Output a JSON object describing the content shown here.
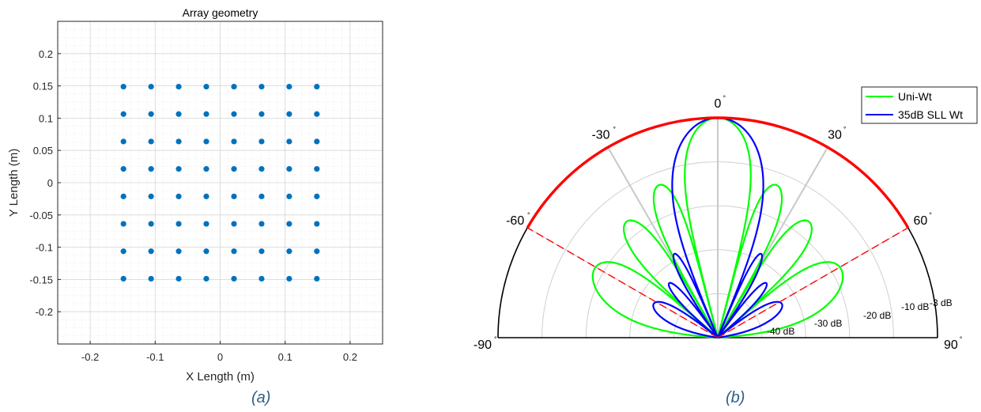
{
  "chart_data": [
    {
      "type": "scatter",
      "title": "Array geometry",
      "xlabel": "X Length (m)",
      "ylabel": "Y Length (m)",
      "xlim": [
        -0.25,
        0.25
      ],
      "ylim": [
        -0.25,
        0.25
      ],
      "xticks": [
        -0.2,
        -0.1,
        0,
        0.1,
        0.2
      ],
      "xtick_labels": [
        "-0.2",
        "-0.1",
        "0",
        "0.1",
        "0.2"
      ],
      "yticks": [
        0.2,
        0.15,
        0.1,
        0.05,
        0,
        -0.05,
        -0.1,
        -0.15,
        -0.2
      ],
      "ytick_labels": [
        "0.2",
        "0.15",
        "0.1",
        "0.05",
        "0",
        "-0.05",
        "-0.1",
        "-0.15",
        "-0.2"
      ],
      "grid": true,
      "marker_color": "#0072bd",
      "element_positions": [
        -0.1488,
        -0.1063,
        -0.0638,
        -0.0213,
        0.0213,
        0.0638,
        0.1063,
        0.1488
      ],
      "grid_size": [
        8,
        8
      ]
    },
    {
      "type": "polar-line",
      "theta_range_deg": [
        -90,
        90
      ],
      "r_range_db": [
        -50,
        0
      ],
      "angle_ticks": [
        -90,
        -60,
        -30,
        0,
        30,
        60,
        90
      ],
      "angle_tick_labels": [
        "-90",
        "-60",
        "-30",
        "0",
        "30",
        "60",
        "90"
      ],
      "radial_ticks": [
        -40,
        -30,
        -20,
        -10,
        -3
      ],
      "radial_tick_labels": [
        "-40 dB",
        "-30 dB",
        "-20 dB",
        "-10 dB",
        "-3 dB"
      ],
      "scan_limits_deg": [
        -60,
        60
      ],
      "legend_position": "top-right",
      "colors": {
        "scan_arc": "#ff0000",
        "uni": "#00ff00",
        "taper": "#0000ff"
      },
      "series": [
        {
          "name": "Uni-Wt",
          "color": "#00ff00",
          "n_elements": 8,
          "taper": "uniform"
        },
        {
          "name": "35dB SLL Wt",
          "color": "#0000ff",
          "n_elements": 8,
          "taper": "chebyshev-35dB"
        }
      ]
    }
  ],
  "captions": {
    "a": "(a)",
    "b": "(b)"
  }
}
